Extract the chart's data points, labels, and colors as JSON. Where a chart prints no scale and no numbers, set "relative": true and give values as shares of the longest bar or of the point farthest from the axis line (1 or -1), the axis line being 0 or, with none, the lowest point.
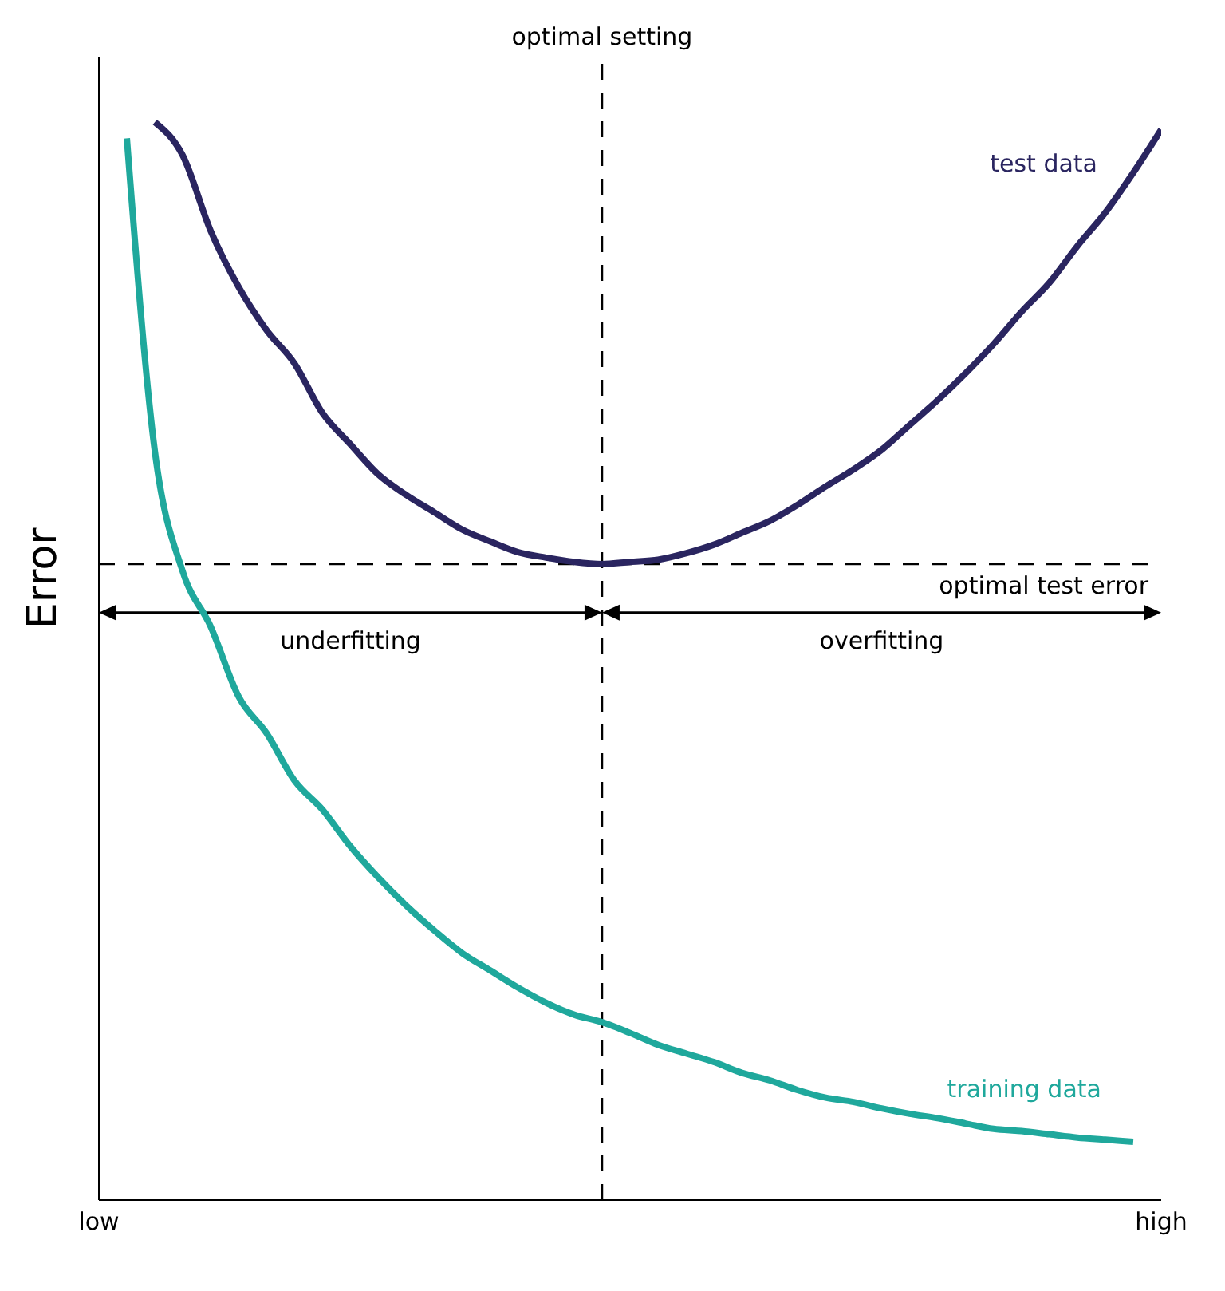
{
  "chart_data": {
    "type": "line",
    "relative": true,
    "ylabel": "Error",
    "categories": [
      "low",
      null,
      null,
      null,
      null,
      null,
      null,
      null,
      null,
      null,
      null,
      null,
      null,
      null,
      null,
      null,
      null,
      null,
      null,
      null,
      null,
      null,
      null,
      null,
      null,
      null,
      null,
      null,
      null,
      null,
      null,
      null,
      null,
      null,
      null,
      null,
      null,
      null,
      "high"
    ],
    "series": [
      {
        "name": "test data",
        "color": "#2a2560",
        "values": [
          null,
          null,
          1.0,
          0.969,
          0.899,
          0.847,
          0.807,
          0.776,
          0.73,
          0.701,
          0.673,
          0.654,
          0.638,
          0.622,
          0.611,
          0.601,
          0.596,
          0.592,
          0.59,
          0.592,
          0.594,
          0.6,
          0.608,
          0.619,
          0.63,
          0.645,
          0.662,
          0.678,
          0.696,
          0.719,
          0.742,
          0.767,
          0.794,
          0.824,
          0.851,
          0.885,
          0.916,
          0.953,
          0.993
        ]
      },
      {
        "name": "training data",
        "color": "#1fa89c",
        "values": [
          null,
          0.985,
          0.695,
          0.583,
          0.532,
          0.467,
          0.433,
          0.389,
          0.362,
          0.328,
          0.299,
          0.273,
          0.25,
          0.229,
          0.213,
          0.197,
          0.183,
          0.172,
          0.165,
          0.155,
          0.144,
          0.136,
          0.128,
          0.118,
          0.111,
          0.102,
          0.095,
          0.091,
          0.085,
          0.08,
          0.076,
          0.071,
          0.066,
          0.064,
          0.061,
          0.058,
          0.056,
          0.054,
          null
        ]
      }
    ],
    "ref_lines": [
      {
        "axis": "y",
        "value": 0.59,
        "label": "optimal test error",
        "line_style": "dashed"
      }
    ],
    "annotations": [
      "optimal setting",
      "underfitting",
      "overfitting"
    ]
  }
}
